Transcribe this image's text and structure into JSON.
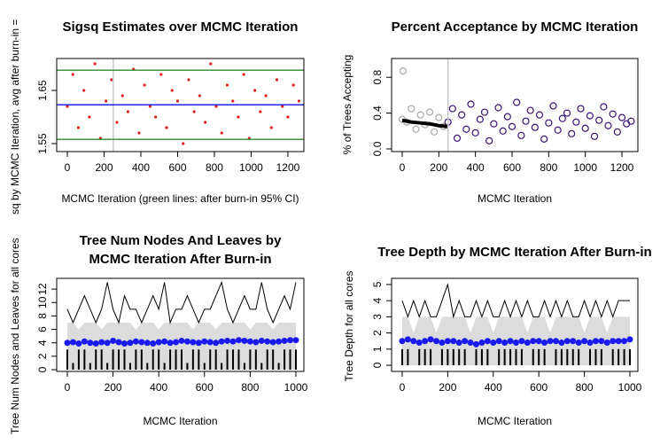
{
  "chart_data": [
    {
      "type": "scatter",
      "title": [
        "Sigsq Estimates over MCMC Iteration"
      ],
      "xlabel": "MCMC Iteration (green lines: after burn-in 95% CI)",
      "ylabel": "sq by MCMC Iteration, avg after burn-in =",
      "xlim": [
        -58,
        1287
      ],
      "ylim": [
        1.535,
        1.71
      ],
      "xticks": [
        0,
        200,
        400,
        600,
        800,
        1000,
        1200
      ],
      "yticks": [
        1.55,
        1.65
      ],
      "vline": 250,
      "vline_color": "#c8c8c8",
      "hlines": [
        {
          "value": 1.688,
          "color": "#2e8b2e"
        },
        {
          "value": 1.558,
          "color": "#2e8b2e"
        },
        {
          "value": 1.623,
          "color": "#1010e0"
        }
      ],
      "series": [
        {
          "kind": "points",
          "marker": "dot",
          "color": "#e02020",
          "x": [
            0,
            30,
            60,
            90,
            120,
            150,
            180,
            210,
            240,
            270,
            300,
            330,
            360,
            390,
            420,
            450,
            480,
            510,
            540,
            570,
            600,
            630,
            660,
            690,
            720,
            750,
            780,
            810,
            840,
            870,
            900,
            930,
            960,
            990,
            1020,
            1050,
            1080,
            1110,
            1140,
            1170,
            1200,
            1230,
            1260
          ],
          "values": [
            1.62,
            1.68,
            1.58,
            1.65,
            1.6,
            1.7,
            1.56,
            1.63,
            1.67,
            1.59,
            1.64,
            1.61,
            1.69,
            1.57,
            1.66,
            1.62,
            1.6,
            1.68,
            1.58,
            1.65,
            1.63,
            1.55,
            1.67,
            1.61,
            1.64,
            1.59,
            1.7,
            1.62,
            1.57,
            1.66,
            1.63,
            1.6,
            1.68,
            1.56,
            1.65,
            1.61,
            1.64,
            1.58,
            1.67,
            1.62,
            1.6,
            1.66,
            1.63
          ]
        }
      ]
    },
    {
      "type": "scatter",
      "title": [
        "Percent Acceptance by MCMC Iteration"
      ],
      "xlabel": "MCMC Iteration",
      "ylabel": "% of Trees Accepting",
      "xlim": [
        -58,
        1287
      ],
      "ylim": [
        -0.03,
        1.01
      ],
      "xticks": [
        0,
        200,
        400,
        600,
        800,
        1000,
        1200
      ],
      "yticks": [
        {
          "value": 0,
          "label": "0.0"
        },
        {
          "value": 0.4,
          "label": "0.4"
        },
        {
          "value": 0.8,
          "label": "0.8"
        }
      ],
      "vline": 250,
      "vline_color": "#c8c8c8",
      "hlines": [],
      "series": [
        {
          "kind": "points",
          "marker": "circle",
          "color": "#a8a8a8",
          "x": [
            0,
            5,
            25,
            50,
            75,
            100,
            125,
            150,
            175,
            200,
            225
          ],
          "values": [
            0.33,
            0.87,
            0.3,
            0.45,
            0.22,
            0.38,
            0.27,
            0.41,
            0.19,
            0.35,
            0.25
          ]
        },
        {
          "kind": "points",
          "marker": "circle",
          "color": "#3b1472",
          "x": [
            250,
            275,
            300,
            325,
            350,
            375,
            400,
            425,
            450,
            475,
            500,
            525,
            550,
            575,
            600,
            625,
            650,
            675,
            700,
            725,
            750,
            775,
            800,
            825,
            850,
            875,
            900,
            925,
            950,
            975,
            1000,
            1025,
            1050,
            1075,
            1100,
            1125,
            1150,
            1175,
            1200,
            1225,
            1250
          ],
          "values": [
            0.3,
            0.45,
            0.12,
            0.38,
            0.22,
            0.5,
            0.18,
            0.33,
            0.41,
            0.09,
            0.28,
            0.46,
            0.2,
            0.36,
            0.25,
            0.52,
            0.15,
            0.31,
            0.43,
            0.24,
            0.38,
            0.11,
            0.29,
            0.48,
            0.21,
            0.34,
            0.4,
            0.17,
            0.3,
            0.45,
            0.23,
            0.37,
            0.14,
            0.32,
            0.47,
            0.26,
            0.39,
            0.19,
            0.35,
            0.28,
            0.31
          ]
        },
        {
          "kind": "line",
          "color": "#000000",
          "width": 4,
          "x": [
            0,
            50,
            100,
            150,
            200,
            250
          ],
          "values": [
            0.32,
            0.3,
            0.29,
            0.28,
            0.26,
            0.25
          ]
        }
      ]
    },
    {
      "type": "line",
      "title": [
        "Tree Num Nodes And Leaves by",
        "MCMC Iteration After Burn-in"
      ],
      "xlabel": "MCMC Iteration",
      "ylabel": "Tree Num Nodes and Leaves for all cores",
      "xlim": [
        -46.5,
        1035
      ],
      "ylim": [
        -0.26,
        13.6
      ],
      "xticks": [
        0,
        200,
        400,
        600,
        800,
        1000
      ],
      "yticks": [
        0,
        2,
        4,
        6,
        8,
        10,
        12
      ],
      "hlines": [],
      "x": [
        0,
        25,
        50,
        75,
        100,
        125,
        150,
        175,
        200,
        225,
        250,
        275,
        300,
        325,
        350,
        375,
        400,
        425,
        450,
        475,
        500,
        525,
        550,
        575,
        600,
        625,
        650,
        675,
        700,
        725,
        750,
        775,
        800,
        825,
        850,
        875,
        900,
        925,
        950,
        975,
        1000
      ],
      "series": [
        {
          "kind": "area",
          "color": "#dcdcdc",
          "values": [
            7,
            7,
            6,
            7,
            7,
            7,
            6,
            7,
            7,
            7,
            7,
            7,
            6,
            7,
            7,
            7,
            6,
            7,
            7,
            7,
            7,
            7,
            6,
            7,
            7,
            7,
            6,
            7,
            7,
            7,
            7,
            7,
            6,
            7,
            7,
            7,
            6,
            7,
            7,
            7,
            7
          ]
        },
        {
          "kind": "spikes",
          "color": "#000000",
          "values": [
            3,
            1,
            3,
            3,
            1,
            3,
            3,
            1,
            3,
            3,
            3,
            1,
            3,
            3,
            1,
            3,
            3,
            1,
            3,
            3,
            3,
            1,
            3,
            3,
            1,
            3,
            3,
            1,
            3,
            3,
            3,
            1,
            3,
            3,
            1,
            3,
            3,
            1,
            3,
            3,
            3
          ]
        },
        {
          "kind": "line",
          "color": "#000000",
          "width": 1,
          "values": [
            9,
            7,
            9,
            11,
            9,
            7,
            9,
            13,
            9,
            7,
            11,
            9,
            9,
            7,
            9,
            11,
            9,
            13,
            7,
            9,
            9,
            11,
            9,
            7,
            9,
            9,
            11,
            13,
            9,
            7,
            9,
            11,
            9,
            9,
            13,
            9,
            7,
            9,
            11,
            9,
            13
          ]
        },
        {
          "kind": "points",
          "marker": "dot",
          "size": 3.5,
          "color": "#1a1aee",
          "values": [
            4.0,
            4.1,
            3.9,
            4.2,
            4.0,
            3.9,
            4.1,
            4.0,
            4.3,
            4.1,
            3.9,
            4.0,
            4.2,
            4.1,
            4.0,
            3.9,
            4.1,
            4.2,
            4.0,
            4.1,
            4.3,
            4.2,
            4.1,
            4.0,
            4.2,
            4.1,
            4.0,
            4.2,
            4.3,
            4.2,
            4.4,
            4.3,
            4.2,
            4.1,
            4.3,
            4.2,
            4.1,
            4.2,
            4.3,
            4.4,
            4.4
          ]
        }
      ]
    },
    {
      "type": "line",
      "title": [
        "Tree Depth by MCMC Iteration After Burn-in"
      ],
      "xlabel": "MCMC Iteration",
      "ylabel": "Tree Depth for all cores",
      "xlim": [
        -46.5,
        1035
      ],
      "ylim": [
        -0.38,
        5.38
      ],
      "xticks": [
        0,
        200,
        400,
        600,
        800,
        1000
      ],
      "yticks": [
        0,
        1,
        2,
        3,
        4,
        5
      ],
      "hlines": [],
      "x": [
        0,
        25,
        50,
        75,
        100,
        125,
        150,
        175,
        200,
        225,
        250,
        275,
        300,
        325,
        350,
        375,
        400,
        425,
        450,
        475,
        500,
        525,
        550,
        575,
        600,
        625,
        650,
        675,
        700,
        725,
        750,
        775,
        800,
        825,
        850,
        875,
        900,
        925,
        950,
        975,
        1000
      ],
      "series": [
        {
          "kind": "area",
          "color": "#dcdcdc",
          "values": [
            3,
            3,
            2,
            3,
            3,
            3,
            2,
            3,
            3,
            3,
            3,
            3,
            2,
            3,
            3,
            3,
            2,
            3,
            3,
            3,
            3,
            3,
            2,
            3,
            3,
            3,
            2,
            3,
            3,
            3,
            3,
            3,
            2,
            3,
            3,
            3,
            2,
            3,
            3,
            3,
            3
          ]
        },
        {
          "kind": "spikes",
          "color": "#000000",
          "values": [
            1,
            1,
            0,
            1,
            1,
            1,
            0,
            1,
            1,
            1,
            1,
            1,
            0,
            1,
            1,
            1,
            0,
            1,
            1,
            1,
            1,
            1,
            0,
            1,
            1,
            1,
            0,
            1,
            1,
            1,
            1,
            1,
            0,
            1,
            1,
            1,
            0,
            1,
            1,
            1,
            1
          ]
        },
        {
          "kind": "line",
          "color": "#000000",
          "width": 1,
          "values": [
            4,
            3,
            4,
            3,
            4,
            3,
            3,
            4,
            5,
            3,
            4,
            3,
            3,
            4,
            3,
            4,
            3,
            3,
            4,
            3,
            4,
            3,
            4,
            3,
            3,
            4,
            3,
            4,
            3,
            4,
            3,
            3,
            4,
            3,
            4,
            3,
            4,
            3,
            4,
            4,
            4
          ]
        },
        {
          "kind": "points",
          "marker": "dot",
          "size": 3.5,
          "color": "#1a1aee",
          "values": [
            1.5,
            1.6,
            1.5,
            1.4,
            1.5,
            1.6,
            1.5,
            1.4,
            1.5,
            1.5,
            1.4,
            1.5,
            1.4,
            1.3,
            1.4,
            1.5,
            1.4,
            1.5,
            1.4,
            1.5,
            1.4,
            1.5,
            1.4,
            1.5,
            1.5,
            1.4,
            1.5,
            1.5,
            1.4,
            1.5,
            1.5,
            1.4,
            1.5,
            1.4,
            1.5,
            1.5,
            1.4,
            1.5,
            1.5,
            1.5,
            1.6
          ]
        }
      ]
    }
  ]
}
